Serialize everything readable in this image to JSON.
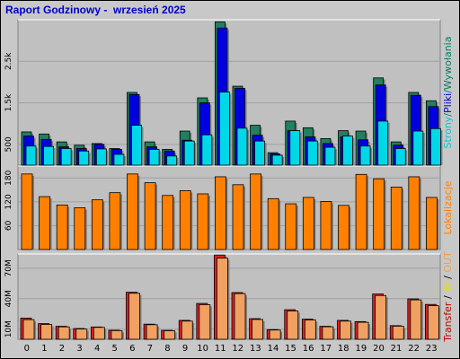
{
  "chart_data": [
    {
      "type": "bar",
      "name_key": "top",
      "title": "Raport Godzinowy -  wrzesień 2025",
      "categories": [
        "0",
        "1",
        "2",
        "3",
        "4",
        "5",
        "6",
        "7",
        "8",
        "9",
        "10",
        "11",
        "12",
        "13",
        "14",
        "15",
        "16",
        "17",
        "18",
        "19",
        "20",
        "21",
        "22",
        "23"
      ],
      "ylim": [
        0,
        3500
      ],
      "yticks": [
        {
          "value": 500,
          "label": "500"
        },
        {
          "value": 1500,
          "label": "1.5k"
        },
        {
          "value": 2500,
          "label": "2.5k"
        }
      ],
      "side_label_parts": [
        {
          "text": "Strony",
          "color": "#00c8c8"
        },
        {
          "text": "/",
          "color": "#008080"
        },
        {
          "text": "Pliki",
          "color": "#0000c8"
        },
        {
          "text": "/",
          "color": "#008080"
        },
        {
          "text": "Wywołania",
          "color": "#008060"
        }
      ],
      "series": [
        {
          "name": "Wywołania",
          "color": "#208060",
          "values": [
            800,
            750,
            560,
            480,
            520,
            400,
            1750,
            560,
            380,
            820,
            1620,
            3450,
            1900,
            960,
            300,
            1060,
            900,
            640,
            830,
            820,
            2100,
            560,
            1750,
            1550
          ]
        },
        {
          "name": "Pliki",
          "color": "#0000e0",
          "values": [
            700,
            620,
            440,
            400,
            500,
            380,
            1700,
            440,
            340,
            600,
            1500,
            3300,
            1850,
            720,
            270,
            830,
            680,
            520,
            680,
            610,
            1930,
            480,
            1680,
            1410
          ]
        },
        {
          "name": "Strony",
          "color": "#00d8e8",
          "values": [
            460,
            450,
            400,
            340,
            390,
            260,
            960,
            380,
            220,
            580,
            730,
            1760,
            890,
            580,
            240,
            830,
            580,
            430,
            700,
            460,
            1060,
            400,
            820,
            880
          ]
        }
      ]
    },
    {
      "type": "bar",
      "name_key": "mid",
      "categories": [
        "0",
        "1",
        "2",
        "3",
        "4",
        "5",
        "6",
        "7",
        "8",
        "9",
        "10",
        "11",
        "12",
        "13",
        "14",
        "15",
        "16",
        "17",
        "18",
        "19",
        "20",
        "21",
        "22",
        "23"
      ],
      "ylim": [
        0,
        210
      ],
      "yticks": [
        {
          "value": 60,
          "label": "60"
        },
        {
          "value": 120,
          "label": "120"
        },
        {
          "value": 180,
          "label": "180"
        }
      ],
      "side_label_parts": [
        {
          "text": "Lokalizacje",
          "color": "#ff8000"
        }
      ],
      "series": [
        {
          "name": "Lokalizacje",
          "color": "#ff8000",
          "values": [
            190,
            133,
            112,
            105,
            125,
            143,
            190,
            168,
            136,
            148,
            140,
            183,
            163,
            190,
            128,
            115,
            131,
            121,
            111,
            189,
            178,
            157,
            183,
            131
          ]
        }
      ]
    },
    {
      "type": "bar",
      "name_key": "bot",
      "categories": [
        "0",
        "1",
        "2",
        "3",
        "4",
        "5",
        "6",
        "7",
        "8",
        "9",
        "10",
        "11",
        "12",
        "13",
        "14",
        "15",
        "16",
        "17",
        "18",
        "19",
        "20",
        "21",
        "22",
        "23"
      ],
      "ylim": [
        0,
        84000000
      ],
      "yticks": [
        {
          "value": 10000000,
          "label": "10M"
        },
        {
          "value": 40000000,
          "label": "40M"
        },
        {
          "value": 70000000,
          "label": "70M"
        }
      ],
      "xtick_labels": [
        "0",
        "1",
        "2",
        "3",
        "4",
        "5",
        "6",
        "7",
        "8",
        "9",
        "10",
        "11",
        "12",
        "13",
        "14",
        "15",
        "16",
        "17",
        "18",
        "19",
        "20",
        "21",
        "22",
        "23"
      ],
      "side_label_parts": [
        {
          "text": "Transfer",
          "color": "#c00000"
        },
        {
          "text": " / ",
          "color": "#000000"
        },
        {
          "text": "IN",
          "color": "#e0e000"
        },
        {
          "text": " / ",
          "color": "#000000"
        },
        {
          "text": "OUT",
          "color": "#f0a050"
        }
      ],
      "series": [
        {
          "name": "Transfer",
          "color": "#e02020",
          "values": [
            20800000,
            15400000,
            12800000,
            10600000,
            12100000,
            8900000,
            46300000,
            14900000,
            8800000,
            18600000,
            35300000,
            83000000,
            46000000,
            20300000,
            9500000,
            29100000,
            19800000,
            12800000,
            18600000,
            17400000,
            44600000,
            13400000,
            39800000,
            34300000
          ]
        },
        {
          "name": "OUT",
          "color": "#f0a060",
          "values": [
            19300000,
            14600000,
            12200000,
            10100000,
            11700000,
            8500000,
            45300000,
            14300000,
            8400000,
            17900000,
            34100000,
            80000000,
            45000000,
            19500000,
            9100000,
            27900000,
            19000000,
            12300000,
            17900000,
            16700000,
            43100000,
            12900000,
            38800000,
            33100000
          ]
        }
      ]
    }
  ]
}
